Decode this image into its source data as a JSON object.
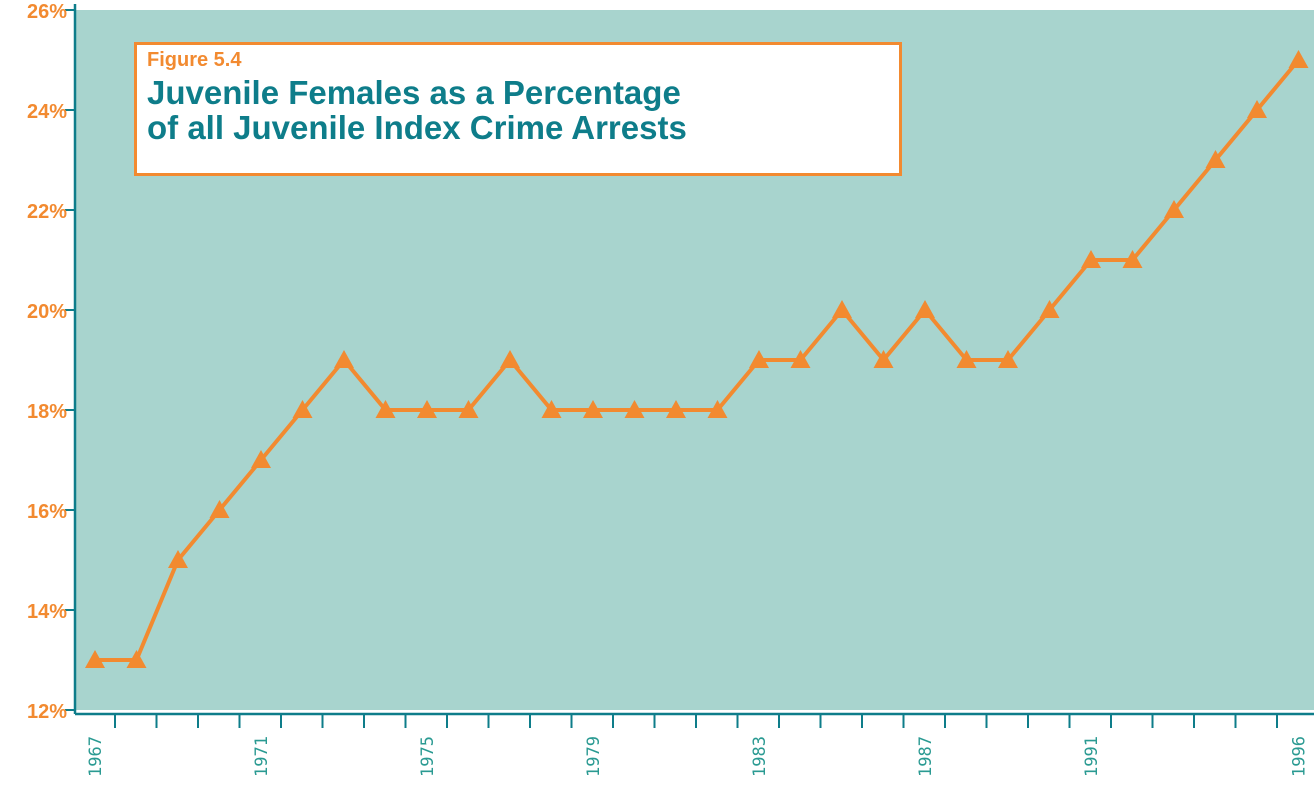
{
  "figure_label": "Figure 5.4",
  "title_line1": "Juvenile Females as a Percentage",
  "title_line2": "of all Juvenile Index Crime Arrests",
  "colors": {
    "plot_background": "#a8d4ce",
    "line": "#f28a30",
    "axis": "#0e7d8a",
    "title_text": "#0e7d8a",
    "y_labels": "#f28a30",
    "x_labels": "#2a9a92",
    "title_border": "#f28a30"
  },
  "chart_data": {
    "type": "line",
    "x": [
      1967,
      1968,
      1969,
      1970,
      1971,
      1972,
      1973,
      1974,
      1975,
      1976,
      1977,
      1978,
      1979,
      1980,
      1981,
      1982,
      1983,
      1984,
      1985,
      1986,
      1987,
      1988,
      1989,
      1990,
      1991,
      1992,
      1993,
      1994,
      1995,
      1996
    ],
    "series": [
      {
        "marker": "triangle",
        "values": [
          13,
          13,
          15,
          16,
          17,
          18,
          19,
          18,
          18,
          18,
          19,
          18,
          18,
          18,
          18,
          18,
          19,
          19,
          20,
          19,
          20,
          19,
          19,
          20,
          21,
          21,
          22,
          23,
          24,
          25
        ]
      }
    ],
    "ylim": [
      12,
      26
    ],
    "y_ticks": [
      12,
      14,
      16,
      18,
      20,
      22,
      24,
      26
    ],
    "y_tick_labels": [
      "12%",
      "14%",
      "16%",
      "18%",
      "20%",
      "22%",
      "24%",
      "26%"
    ],
    "x_tick_labels": [
      "1967",
      "1971",
      "1975",
      "1979",
      "1983",
      "1987",
      "1991",
      "1996"
    ],
    "x_label_years": [
      1967,
      1971,
      1975,
      1979,
      1983,
      1987,
      1991,
      1996
    ],
    "grid": false,
    "legend": "none"
  }
}
